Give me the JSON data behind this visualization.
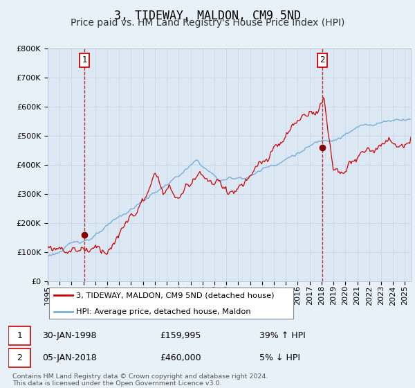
{
  "title": "3, TIDEWAY, MALDON, CM9 5ND",
  "subtitle": "Price paid vs. HM Land Registry's House Price Index (HPI)",
  "ylim": [
    0,
    800000
  ],
  "yticks": [
    0,
    100000,
    200000,
    300000,
    400000,
    500000,
    600000,
    700000,
    800000
  ],
  "sale1_year": 1998.08,
  "sale1_price": 159995,
  "sale1_date": "30-JAN-1998",
  "sale1_hpi_pct": "39% ↑ HPI",
  "sale2_year": 2018.04,
  "sale2_price": 460000,
  "sale2_date": "05-JAN-2018",
  "sale2_hpi_pct": "5% ↓ HPI",
  "line_color_red": "#cc0000",
  "line_color_blue": "#7aaed6",
  "vline_color": "#cc0000",
  "grid_color": "#c8d8e8",
  "bg_color": "#e8f0f8",
  "plot_bg": "#dce8f4",
  "legend_line1": "3, TIDEWAY, MALDON, CM9 5ND (detached house)",
  "legend_line2": "HPI: Average price, detached house, Maldon",
  "footer": "Contains HM Land Registry data © Crown copyright and database right 2024.\nThis data is licensed under the Open Government Licence v3.0.",
  "title_fontsize": 12,
  "subtitle_fontsize": 10,
  "tick_fontsize": 8
}
